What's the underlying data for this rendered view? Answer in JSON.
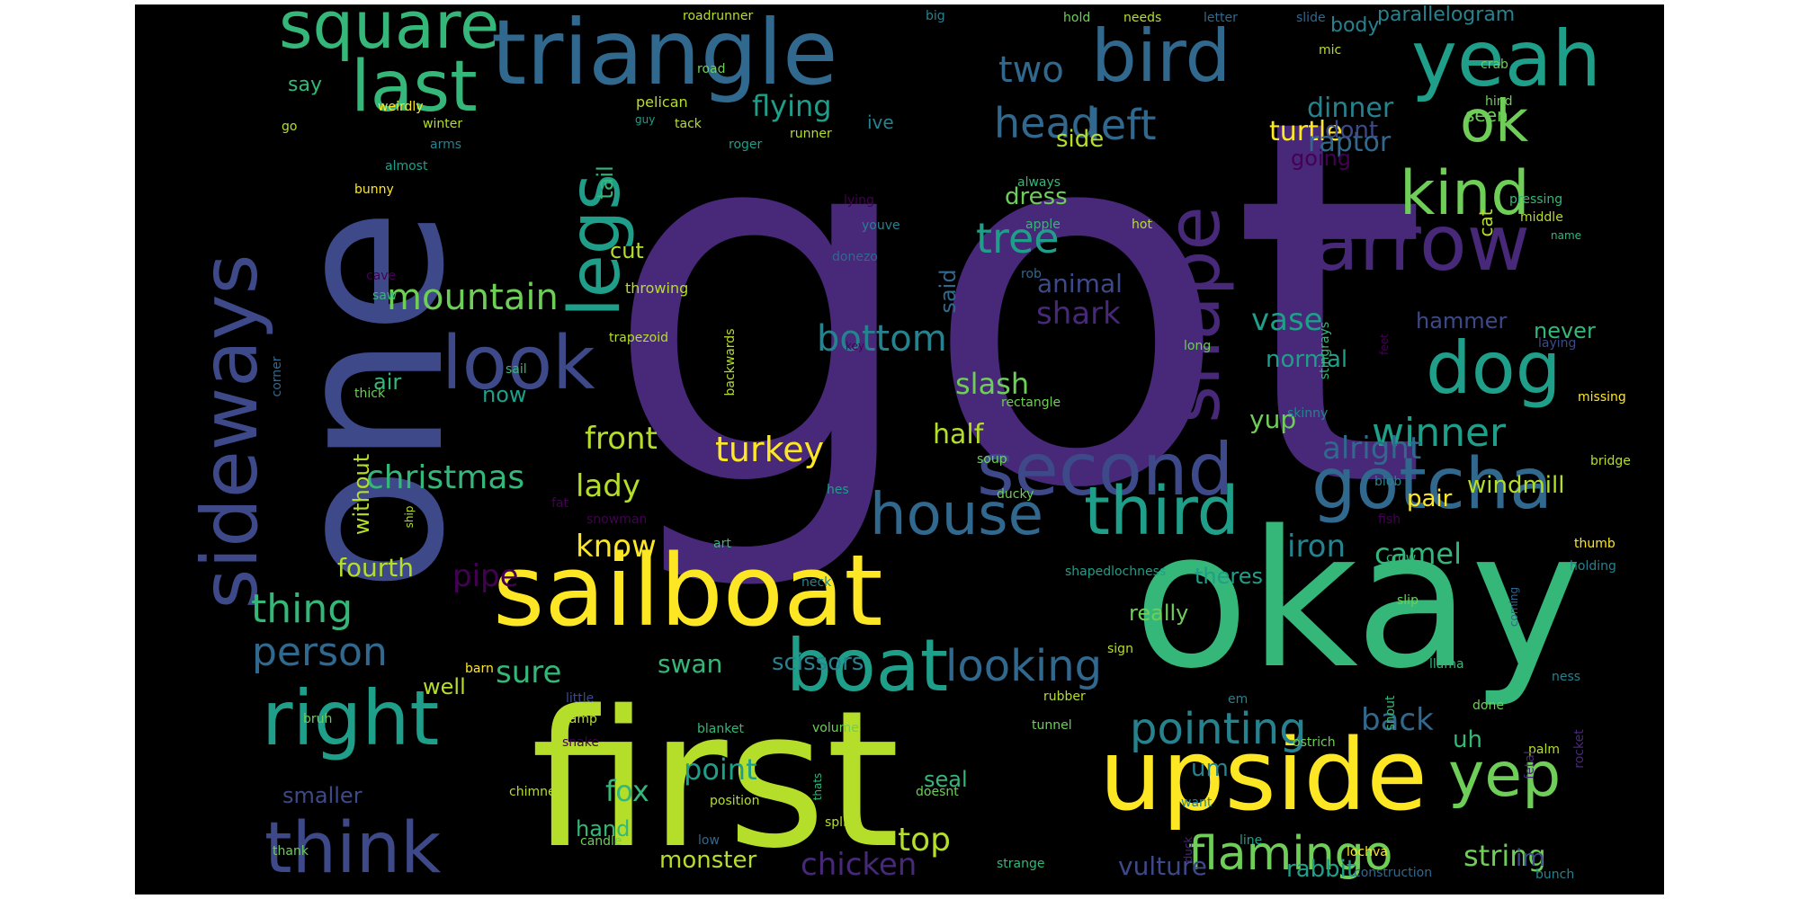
{
  "palette": {
    "background": "#000000",
    "colors": [
      "#440154",
      "#482878",
      "#3e4989",
      "#31688e",
      "#26828e",
      "#1f9e89",
      "#35b779",
      "#6ece58",
      "#b5de2b",
      "#fde725"
    ]
  },
  "words": [
    {
      "text": "got",
      "weight": 100
    },
    {
      "text": "one",
      "weight": 78
    },
    {
      "text": "okay",
      "weight": 72
    },
    {
      "text": "first",
      "weight": 70
    },
    {
      "text": "sailboat",
      "weight": 48
    },
    {
      "text": "upside",
      "weight": 47
    },
    {
      "text": "triangle",
      "weight": 44
    },
    {
      "text": "sideways",
      "weight": 38
    },
    {
      "text": "yeah",
      "weight": 37
    },
    {
      "text": "square",
      "weight": 33
    },
    {
      "text": "right",
      "weight": 33
    },
    {
      "text": "bird",
      "weight": 32
    },
    {
      "text": "arrow",
      "weight": 32
    },
    {
      "text": "boat",
      "weight": 32
    },
    {
      "text": "second",
      "weight": 32
    },
    {
      "text": "gotcha",
      "weight": 31
    },
    {
      "text": "think",
      "weight": 31
    },
    {
      "text": "look",
      "weight": 30
    },
    {
      "text": "dog",
      "weight": 30
    },
    {
      "text": "third",
      "weight": 30
    },
    {
      "text": "house",
      "weight": 29
    },
    {
      "text": "yep",
      "weight": 28
    },
    {
      "text": "legs",
      "weight": 28
    },
    {
      "text": "shape",
      "weight": 27
    },
    {
      "text": "kind",
      "weight": 27
    },
    {
      "text": "ok",
      "weight": 27
    },
    {
      "text": "last",
      "weight": 26
    },
    {
      "text": "flamingo",
      "weight": 20
    },
    {
      "text": "head",
      "weight": 18
    },
    {
      "text": "left",
      "weight": 18
    },
    {
      "text": "two",
      "weight": 17
    },
    {
      "text": "pointing",
      "weight": 18
    },
    {
      "text": "looking",
      "weight": 17
    },
    {
      "text": "bottom",
      "weight": 17
    },
    {
      "text": "tree",
      "weight": 17
    },
    {
      "text": "winner",
      "weight": 16
    },
    {
      "text": "mountain",
      "weight": 16
    },
    {
      "text": "christmas",
      "weight": 15
    },
    {
      "text": "thing",
      "weight": 17
    },
    {
      "text": "person",
      "weight": 16
    },
    {
      "text": "turkey",
      "weight": 15
    },
    {
      "text": "front",
      "weight": 14
    },
    {
      "text": "lady",
      "weight": 14
    },
    {
      "text": "know",
      "weight": 14
    },
    {
      "text": "pipe",
      "weight": 14
    },
    {
      "text": "string",
      "weight": 14
    },
    {
      "text": "top",
      "weight": 14
    },
    {
      "text": "chicken",
      "weight": 14
    },
    {
      "text": "back",
      "weight": 14
    },
    {
      "text": "shark",
      "weight": 13
    },
    {
      "text": "alright",
      "weight": 13
    },
    {
      "text": "camel",
      "weight": 13
    },
    {
      "text": "iron",
      "weight": 13
    },
    {
      "text": "vase",
      "weight": 13
    },
    {
      "text": "flying",
      "weight": 13
    },
    {
      "text": "sure",
      "weight": 13
    },
    {
      "text": "slash",
      "weight": 12
    },
    {
      "text": "half",
      "weight": 12
    },
    {
      "text": "turtle",
      "weight": 12
    },
    {
      "text": "dinner",
      "weight": 12
    },
    {
      "text": "raptor",
      "weight": 12
    },
    {
      "text": "monster",
      "weight": 11
    },
    {
      "text": "fox",
      "weight": 12
    },
    {
      "text": "point",
      "weight": 12
    },
    {
      "text": "vulture",
      "weight": 12
    },
    {
      "text": "scissors",
      "weight": 11
    },
    {
      "text": "swan",
      "weight": 11
    },
    {
      "text": "fourth",
      "weight": 11
    },
    {
      "text": "animal",
      "weight": 11
    },
    {
      "text": "parallelogram",
      "weight": 10
    },
    {
      "text": "rabbit",
      "weight": 11
    },
    {
      "text": "um",
      "weight": 11
    },
    {
      "text": "uh",
      "weight": 11
    },
    {
      "text": "im",
      "weight": 11
    },
    {
      "text": "yup",
      "weight": 11
    },
    {
      "text": "pair",
      "weight": 10
    },
    {
      "text": "hammer",
      "weight": 10
    },
    {
      "text": "dress",
      "weight": 10
    },
    {
      "text": "normal",
      "weight": 10
    },
    {
      "text": "windmill",
      "weight": 10
    },
    {
      "text": "side",
      "weight": 10
    },
    {
      "text": "dont",
      "weight": 10
    },
    {
      "text": "going",
      "weight": 10
    },
    {
      "text": "cut",
      "weight": 10
    },
    {
      "text": "now",
      "weight": 10
    },
    {
      "text": "well",
      "weight": 10
    },
    {
      "text": "say",
      "weight": 9
    },
    {
      "text": "body",
      "weight": 9
    },
    {
      "text": "seen",
      "weight": 9
    },
    {
      "text": "ive",
      "weight": 9
    },
    {
      "text": "really",
      "weight": 10
    },
    {
      "text": "theres",
      "weight": 10
    },
    {
      "text": "never",
      "weight": 10
    },
    {
      "text": "seal",
      "weight": 10
    },
    {
      "text": "hand",
      "weight": 10
    },
    {
      "text": "smaller",
      "weight": 10
    },
    {
      "text": "air",
      "weight": 10
    },
    {
      "text": "tail",
      "weight": 10
    },
    {
      "text": "without",
      "weight": 9
    },
    {
      "text": "cat",
      "weight": 9
    },
    {
      "text": "said",
      "weight": 9
    },
    {
      "text": "roadrunner",
      "weight": 7
    },
    {
      "text": "road",
      "weight": 7
    },
    {
      "text": "big",
      "weight": 7
    },
    {
      "text": "hold",
      "weight": 7
    },
    {
      "text": "needs",
      "weight": 7
    },
    {
      "text": "letter",
      "weight": 7
    },
    {
      "text": "slide",
      "weight": 7
    },
    {
      "text": "crab",
      "weight": 7
    },
    {
      "text": "mic",
      "weight": 7
    },
    {
      "text": "hind",
      "weight": 7
    },
    {
      "text": "pelican",
      "weight": 7
    },
    {
      "text": "guy",
      "weight": 6
    },
    {
      "text": "tack",
      "weight": 7
    },
    {
      "text": "roger",
      "weight": 7
    },
    {
      "text": "runner",
      "weight": 7
    },
    {
      "text": "weirdly",
      "weight": 7
    },
    {
      "text": "go",
      "weight": 7
    },
    {
      "text": "winter",
      "weight": 7
    },
    {
      "text": "arms",
      "weight": 7
    },
    {
      "text": "almost",
      "weight": 7
    },
    {
      "text": "always",
      "weight": 7
    },
    {
      "text": "lying",
      "weight": 7
    },
    {
      "text": "pressing",
      "weight": 7
    },
    {
      "text": "middle",
      "weight": 7
    },
    {
      "text": "bunny",
      "weight": 7
    },
    {
      "text": "youve",
      "weight": 7
    },
    {
      "text": "apple",
      "weight": 7
    },
    {
      "text": "hot",
      "weight": 7
    },
    {
      "text": "name",
      "weight": 6
    },
    {
      "text": "donezo",
      "weight": 7
    },
    {
      "text": "rob",
      "weight": 7
    },
    {
      "text": "cave",
      "weight": 7
    },
    {
      "text": "throwing",
      "weight": 7
    },
    {
      "text": "saw",
      "weight": 7
    },
    {
      "text": "trapezoid",
      "weight": 7
    },
    {
      "text": "key",
      "weight": 6
    },
    {
      "text": "long",
      "weight": 7
    },
    {
      "text": "stingrays",
      "weight": 7
    },
    {
      "text": "feet",
      "weight": 6
    },
    {
      "text": "laying",
      "weight": 7
    },
    {
      "text": "thick",
      "weight": 7
    },
    {
      "text": "corner",
      "weight": 7
    },
    {
      "text": "sail",
      "weight": 7
    },
    {
      "text": "backwards",
      "weight": 7
    },
    {
      "text": "rectangle",
      "weight": 7
    },
    {
      "text": "missing",
      "weight": 7
    },
    {
      "text": "skinny",
      "weight": 7
    },
    {
      "text": "soup",
      "weight": 7
    },
    {
      "text": "ducky",
      "weight": 7
    },
    {
      "text": "blob",
      "weight": 7
    },
    {
      "text": "bridge",
      "weight": 7
    },
    {
      "text": "fat",
      "weight": 6
    },
    {
      "text": "snowman",
      "weight": 7
    },
    {
      "text": "hes",
      "weight": 7
    },
    {
      "text": "fish",
      "weight": 7
    },
    {
      "text": "ship",
      "weight": 6
    },
    {
      "text": "art",
      "weight": 7
    },
    {
      "text": "thumb",
      "weight": 7
    },
    {
      "text": "holding",
      "weight": 7
    },
    {
      "text": "crow",
      "weight": 7
    },
    {
      "text": "neck",
      "weight": 7
    },
    {
      "text": "shapedlochness",
      "weight": 7
    },
    {
      "text": "coming",
      "weight": 6
    },
    {
      "text": "slip",
      "weight": 7
    },
    {
      "text": "sign",
      "weight": 7
    },
    {
      "text": "barn",
      "weight": 7
    },
    {
      "text": "llama",
      "weight": 7
    },
    {
      "text": "little",
      "weight": 7
    },
    {
      "text": "tunnel",
      "weight": 7
    },
    {
      "text": "em",
      "weight": 7
    },
    {
      "text": "ness",
      "weight": 7
    },
    {
      "text": "bruh",
      "weight": 7
    },
    {
      "text": "ramp",
      "weight": 7
    },
    {
      "text": "blanket",
      "weight": 7
    },
    {
      "text": "volume",
      "weight": 7
    },
    {
      "text": "rubber",
      "weight": 7
    },
    {
      "text": "snout",
      "weight": 7
    },
    {
      "text": "done",
      "weight": 7
    },
    {
      "text": "snake",
      "weight": 7
    },
    {
      "text": "ostrich",
      "weight": 7
    },
    {
      "text": "palm",
      "weight": 7
    },
    {
      "text": "fetal",
      "weight": 7
    },
    {
      "text": "rocket",
      "weight": 7
    },
    {
      "text": "chimney",
      "weight": 7
    },
    {
      "text": "position",
      "weight": 7
    },
    {
      "text": "thats",
      "weight": 6
    },
    {
      "text": "doesnt",
      "weight": 7
    },
    {
      "text": "want",
      "weight": 7
    },
    {
      "text": "splits",
      "weight": 7
    },
    {
      "text": "candle",
      "weight": 7
    },
    {
      "text": "low",
      "weight": 7
    },
    {
      "text": "line",
      "weight": 7
    },
    {
      "text": "thank",
      "weight": 7
    },
    {
      "text": "strange",
      "weight": 7
    },
    {
      "text": "duck",
      "weight": 6
    },
    {
      "text": "lochva",
      "weight": 7
    },
    {
      "text": "construction",
      "weight": 7
    },
    {
      "text": "bunch",
      "weight": 7
    }
  ]
}
